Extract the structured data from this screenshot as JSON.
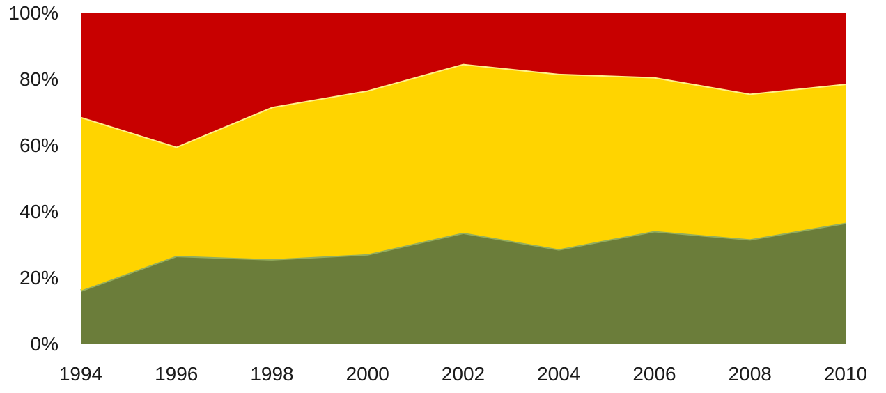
{
  "chart_data": {
    "type": "area",
    "stacked": true,
    "percent": true,
    "title": "",
    "xlabel": "",
    "ylabel": "",
    "x": [
      1994,
      1996,
      1998,
      2000,
      2002,
      2004,
      2006,
      2008,
      2010
    ],
    "x_tick_labels": [
      "1994",
      "1996",
      "1998",
      "2000",
      "2002",
      "2004",
      "2006",
      "2008",
      "2010"
    ],
    "ylim": [
      0,
      100
    ],
    "y_ticks": [
      0,
      20,
      40,
      60,
      80,
      100
    ],
    "y_tick_labels": [
      "0%",
      "20%",
      "40%",
      "60%",
      "80%",
      "100%"
    ],
    "grid": false,
    "legend": "none",
    "series": [
      {
        "color": "#6b7d3a",
        "edge": "#93ad5e",
        "values": [
          16,
          26.5,
          25.5,
          27,
          33.5,
          28.5,
          34,
          31.5,
          36.5
        ]
      },
      {
        "color": "#ffd400",
        "edge": "#fff18a",
        "values": [
          52.5,
          33,
          46,
          49.5,
          51,
          53,
          46.5,
          44,
          42
        ]
      },
      {
        "color": "#c80000",
        "edge": "#c80000",
        "values": [
          31.5,
          40.5,
          28.5,
          23.5,
          15.5,
          18.5,
          19.5,
          24.5,
          21.5
        ]
      }
    ]
  }
}
